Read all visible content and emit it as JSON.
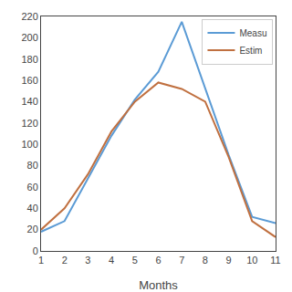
{
  "chart_data": {
    "type": "line",
    "xlabel": "Months",
    "x": [
      1,
      2,
      3,
      4,
      5,
      6,
      7,
      8,
      9,
      10,
      11
    ],
    "series": [
      {
        "name": "Measu",
        "color": "#5B9BD5",
        "values": [
          18,
          28,
          68,
          108,
          142,
          168,
          215,
          152,
          90,
          32,
          26
        ]
      },
      {
        "name": "Estim",
        "color": "#C07040",
        "values": [
          20,
          40,
          72,
          112,
          140,
          158,
          152,
          140,
          88,
          28,
          13
        ]
      }
    ],
    "xlim": [
      1,
      11
    ],
    "ylim": [
      0,
      220
    ],
    "xticks": [
      1,
      2,
      3,
      4,
      5,
      6,
      7,
      8,
      9,
      10,
      11
    ],
    "yticks": [
      0,
      20,
      40,
      60,
      80,
      100,
      120,
      140,
      160,
      180,
      200,
      220
    ],
    "grid": false,
    "legend": "upper right"
  }
}
